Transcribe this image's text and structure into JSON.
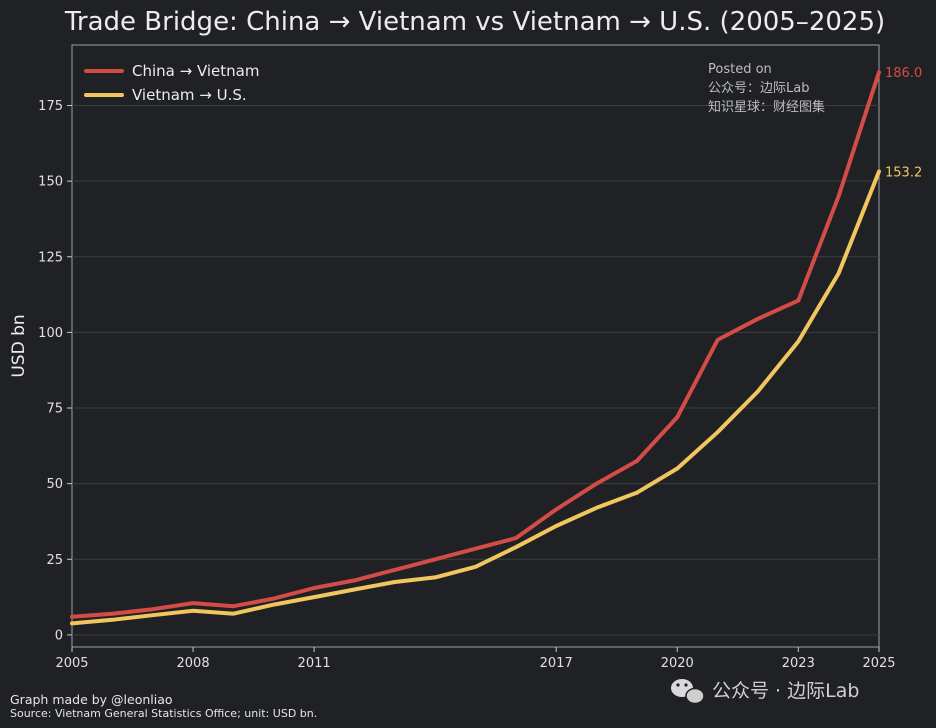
{
  "chart_data": {
    "type": "line",
    "title": "Trade Bridge: China → Vietnam vs Vietnam → U.S. (2005–2025)",
    "ylabel": "USD bn",
    "xlabel": "",
    "xlim": [
      2005,
      2025
    ],
    "ylim": [
      -4,
      195
    ],
    "x_ticks": [
      2005,
      2008,
      2011,
      2017,
      2020,
      2023,
      2025
    ],
    "y_ticks": [
      0,
      25,
      50,
      75,
      100,
      125,
      150,
      175
    ],
    "grid": "horizontal",
    "legend_position": "top-left",
    "x": [
      2005,
      2006,
      2007,
      2008,
      2009,
      2010,
      2011,
      2012,
      2013,
      2014,
      2015,
      2016,
      2017,
      2018,
      2019,
      2020,
      2021,
      2022,
      2023,
      2024,
      2025
    ],
    "series": [
      {
        "name": "China → Vietnam",
        "color": "#d44c47",
        "values": [
          6.0,
          7.0,
          8.5,
          10.5,
          9.5,
          12.0,
          15.5,
          18.0,
          21.5,
          25.0,
          28.5,
          32.0,
          41.5,
          50.0,
          57.5,
          72.0,
          97.5,
          104.5,
          110.5,
          145.0,
          186.0
        ],
        "end_label": "186.0"
      },
      {
        "name": "Vietnam → U.S.",
        "color": "#f0c75e",
        "values": [
          3.8,
          5.0,
          6.5,
          8.0,
          7.0,
          10.0,
          12.5,
          15.0,
          17.5,
          19.0,
          22.5,
          29.0,
          36.0,
          42.0,
          47.0,
          55.0,
          67.0,
          80.5,
          97.0,
          119.5,
          153.2
        ],
        "end_label": "153.2"
      }
    ],
    "annotation_lines": [
      "Posted on",
      "公众号：边际Lab",
      "知识星球：财经图集"
    ]
  },
  "footer": {
    "credit": "Graph made by @leonliao",
    "source": "Source: Vietnam General Statistics Office; unit: USD bn."
  },
  "watermark": {
    "icon": "wechat-icon",
    "text": "公众号 · 边际Lab"
  }
}
